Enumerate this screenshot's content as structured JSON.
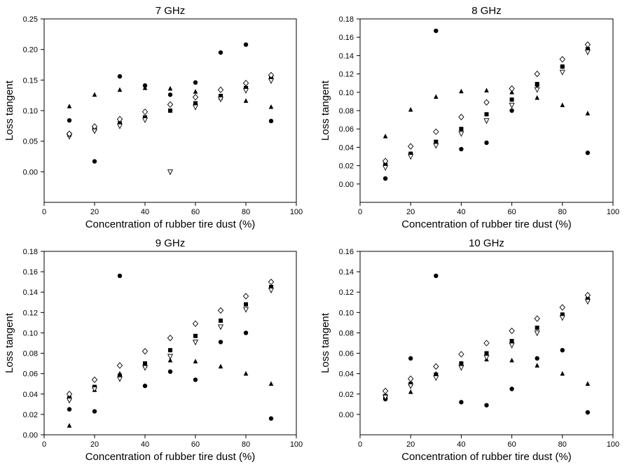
{
  "chart_data": [
    {
      "type": "scatter",
      "title": "7 GHz",
      "xlabel": "Concentration of rubber tire dust (%)",
      "ylabel": "Loss tangent",
      "xlim": [
        0,
        100
      ],
      "ylim": [
        -0.05,
        0.25
      ],
      "xticks": [
        0,
        20,
        40,
        60,
        80,
        100
      ],
      "xtick_labels": [
        "0",
        "20",
        "40",
        "60",
        "80",
        "100"
      ],
      "yticks": [
        0.0,
        0.05,
        0.1,
        0.15,
        0.2,
        0.25
      ],
      "ytick_labels": [
        "0.00",
        "0.05",
        "0.10",
        "0.15",
        "0.20",
        "0.25"
      ],
      "grid": false,
      "x": [
        10,
        20,
        30,
        40,
        50,
        60,
        70,
        80,
        90
      ],
      "series": [
        {
          "marker": "circle",
          "values": [
            0.084,
            0.017,
            0.156,
            0.141,
            0.126,
            0.146,
            0.195,
            0.208,
            0.083
          ]
        },
        {
          "marker": "triangle-up",
          "values": [
            0.107,
            0.126,
            0.134,
            0.137,
            0.136,
            0.131,
            0.121,
            0.116,
            0.106
          ]
        },
        {
          "marker": "square",
          "values": [
            0.061,
            0.07,
            0.079,
            0.089,
            0.1,
            0.112,
            0.124,
            0.137,
            0.153
          ]
        },
        {
          "marker": "triangle-down",
          "values": [
            0.058,
            0.067,
            0.075,
            0.085,
            0.0,
            0.106,
            0.119,
            0.133,
            0.149
          ]
        },
        {
          "marker": "diamond-open",
          "values": [
            0.062,
            0.074,
            0.086,
            0.098,
            0.11,
            0.122,
            0.134,
            0.145,
            0.158
          ]
        }
      ]
    },
    {
      "type": "scatter",
      "title": "8 GHz",
      "xlabel": "Concentration of rubber tire dust (%)",
      "ylabel": "Loss tangent",
      "xlim": [
        0,
        100
      ],
      "ylim": [
        -0.02,
        0.18
      ],
      "xticks": [
        0,
        20,
        40,
        60,
        80,
        100
      ],
      "xtick_labels": [
        "0",
        "20",
        "40",
        "60",
        "80",
        "100"
      ],
      "yticks": [
        0.0,
        0.02,
        0.04,
        0.06,
        0.08,
        0.1,
        0.12,
        0.14,
        0.16,
        0.18
      ],
      "ytick_labels": [
        "0.00",
        "0.02",
        "0.04",
        "0.06",
        "0.08",
        "0.10",
        "0.12",
        "0.14",
        "0.16",
        "0.18"
      ],
      "grid": false,
      "x": [
        10,
        20,
        30,
        40,
        50,
        60,
        70,
        80,
        90
      ],
      "series": [
        {
          "marker": "circle",
          "values": [
            0.006,
            0.033,
            0.167,
            0.038,
            0.045,
            0.08,
            0.108,
            0.128,
            0.034
          ]
        },
        {
          "marker": "triangle-up",
          "values": [
            0.052,
            0.081,
            0.095,
            0.101,
            0.102,
            0.1,
            0.094,
            0.086,
            0.077
          ]
        },
        {
          "marker": "square",
          "values": [
            0.021,
            0.033,
            0.046,
            0.06,
            0.076,
            0.092,
            0.109,
            0.128,
            0.147
          ]
        },
        {
          "marker": "triangle-down",
          "values": [
            0.018,
            0.03,
            0.042,
            0.055,
            0.069,
            0.086,
            0.103,
            0.122,
            0.144
          ]
        },
        {
          "marker": "diamond-open",
          "values": [
            0.025,
            0.041,
            0.057,
            0.073,
            0.089,
            0.104,
            0.12,
            0.136,
            0.152
          ]
        }
      ]
    },
    {
      "type": "scatter",
      "title": "9 GHz",
      "xlabel": "Concentration of rubber tire dust (%)",
      "ylabel": "Loss tangent",
      "xlim": [
        0,
        100
      ],
      "ylim": [
        0.0,
        0.18
      ],
      "xticks": [
        0,
        20,
        40,
        60,
        80,
        100
      ],
      "xtick_labels": [
        "0",
        "20",
        "40",
        "60",
        "80",
        "100"
      ],
      "yticks": [
        0.0,
        0.02,
        0.04,
        0.06,
        0.08,
        0.1,
        0.12,
        0.14,
        0.16,
        0.18
      ],
      "ytick_labels": [
        "0.00",
        "0.02",
        "0.04",
        "0.06",
        "0.08",
        "0.10",
        "0.12",
        "0.14",
        "0.16",
        "0.18"
      ],
      "grid": false,
      "x": [
        10,
        20,
        30,
        40,
        50,
        60,
        70,
        80,
        90
      ],
      "series": [
        {
          "marker": "circle",
          "values": [
            0.025,
            0.023,
            0.156,
            0.048,
            0.062,
            0.054,
            0.091,
            0.1,
            0.016
          ]
        },
        {
          "marker": "triangle-up",
          "values": [
            0.009,
            0.044,
            0.06,
            0.068,
            0.073,
            0.072,
            0.067,
            0.06,
            0.05
          ]
        },
        {
          "marker": "square",
          "values": [
            0.036,
            0.047,
            0.058,
            0.07,
            0.083,
            0.097,
            0.112,
            0.128,
            0.145
          ]
        },
        {
          "marker": "triangle-down",
          "values": [
            0.034,
            0.045,
            0.055,
            0.066,
            0.077,
            0.091,
            0.106,
            0.123,
            0.142
          ]
        },
        {
          "marker": "diamond-open",
          "values": [
            0.04,
            0.054,
            0.068,
            0.082,
            0.095,
            0.109,
            0.122,
            0.136,
            0.15
          ]
        }
      ]
    },
    {
      "type": "scatter",
      "title": "10 GHz",
      "xlabel": "Concentration of rubber tire dust (%)",
      "ylabel": "Loss tangent",
      "xlim": [
        0,
        100
      ],
      "ylim": [
        -0.02,
        0.16
      ],
      "xticks": [
        0,
        20,
        40,
        60,
        80,
        100
      ],
      "xtick_labels": [
        "0",
        "20",
        "40",
        "60",
        "80",
        "100"
      ],
      "yticks": [
        0.0,
        0.02,
        0.04,
        0.06,
        0.08,
        0.1,
        0.12,
        0.14,
        0.16
      ],
      "ytick_labels": [
        "0.00",
        "0.02",
        "0.04",
        "0.06",
        "0.08",
        "0.10",
        "0.12",
        "0.14",
        "0.16"
      ],
      "grid": false,
      "x": [
        10,
        20,
        30,
        40,
        50,
        60,
        70,
        80,
        90
      ],
      "series": [
        {
          "marker": "circle",
          "values": [
            0.015,
            0.055,
            0.136,
            0.012,
            0.009,
            0.025,
            0.055,
            0.063,
            0.002
          ]
        },
        {
          "marker": "triangle-up",
          "values": [
            0.018,
            0.022,
            0.04,
            0.05,
            0.054,
            0.053,
            0.048,
            0.04,
            0.03
          ]
        },
        {
          "marker": "square",
          "values": [
            0.018,
            0.03,
            0.039,
            0.05,
            0.06,
            0.072,
            0.085,
            0.098,
            0.113
          ]
        },
        {
          "marker": "triangle-down",
          "values": [
            0.017,
            0.028,
            0.036,
            0.046,
            0.056,
            0.068,
            0.08,
            0.095,
            0.111
          ]
        },
        {
          "marker": "diamond-open",
          "values": [
            0.023,
            0.035,
            0.047,
            0.059,
            0.07,
            0.082,
            0.094,
            0.105,
            0.117
          ]
        }
      ]
    }
  ]
}
